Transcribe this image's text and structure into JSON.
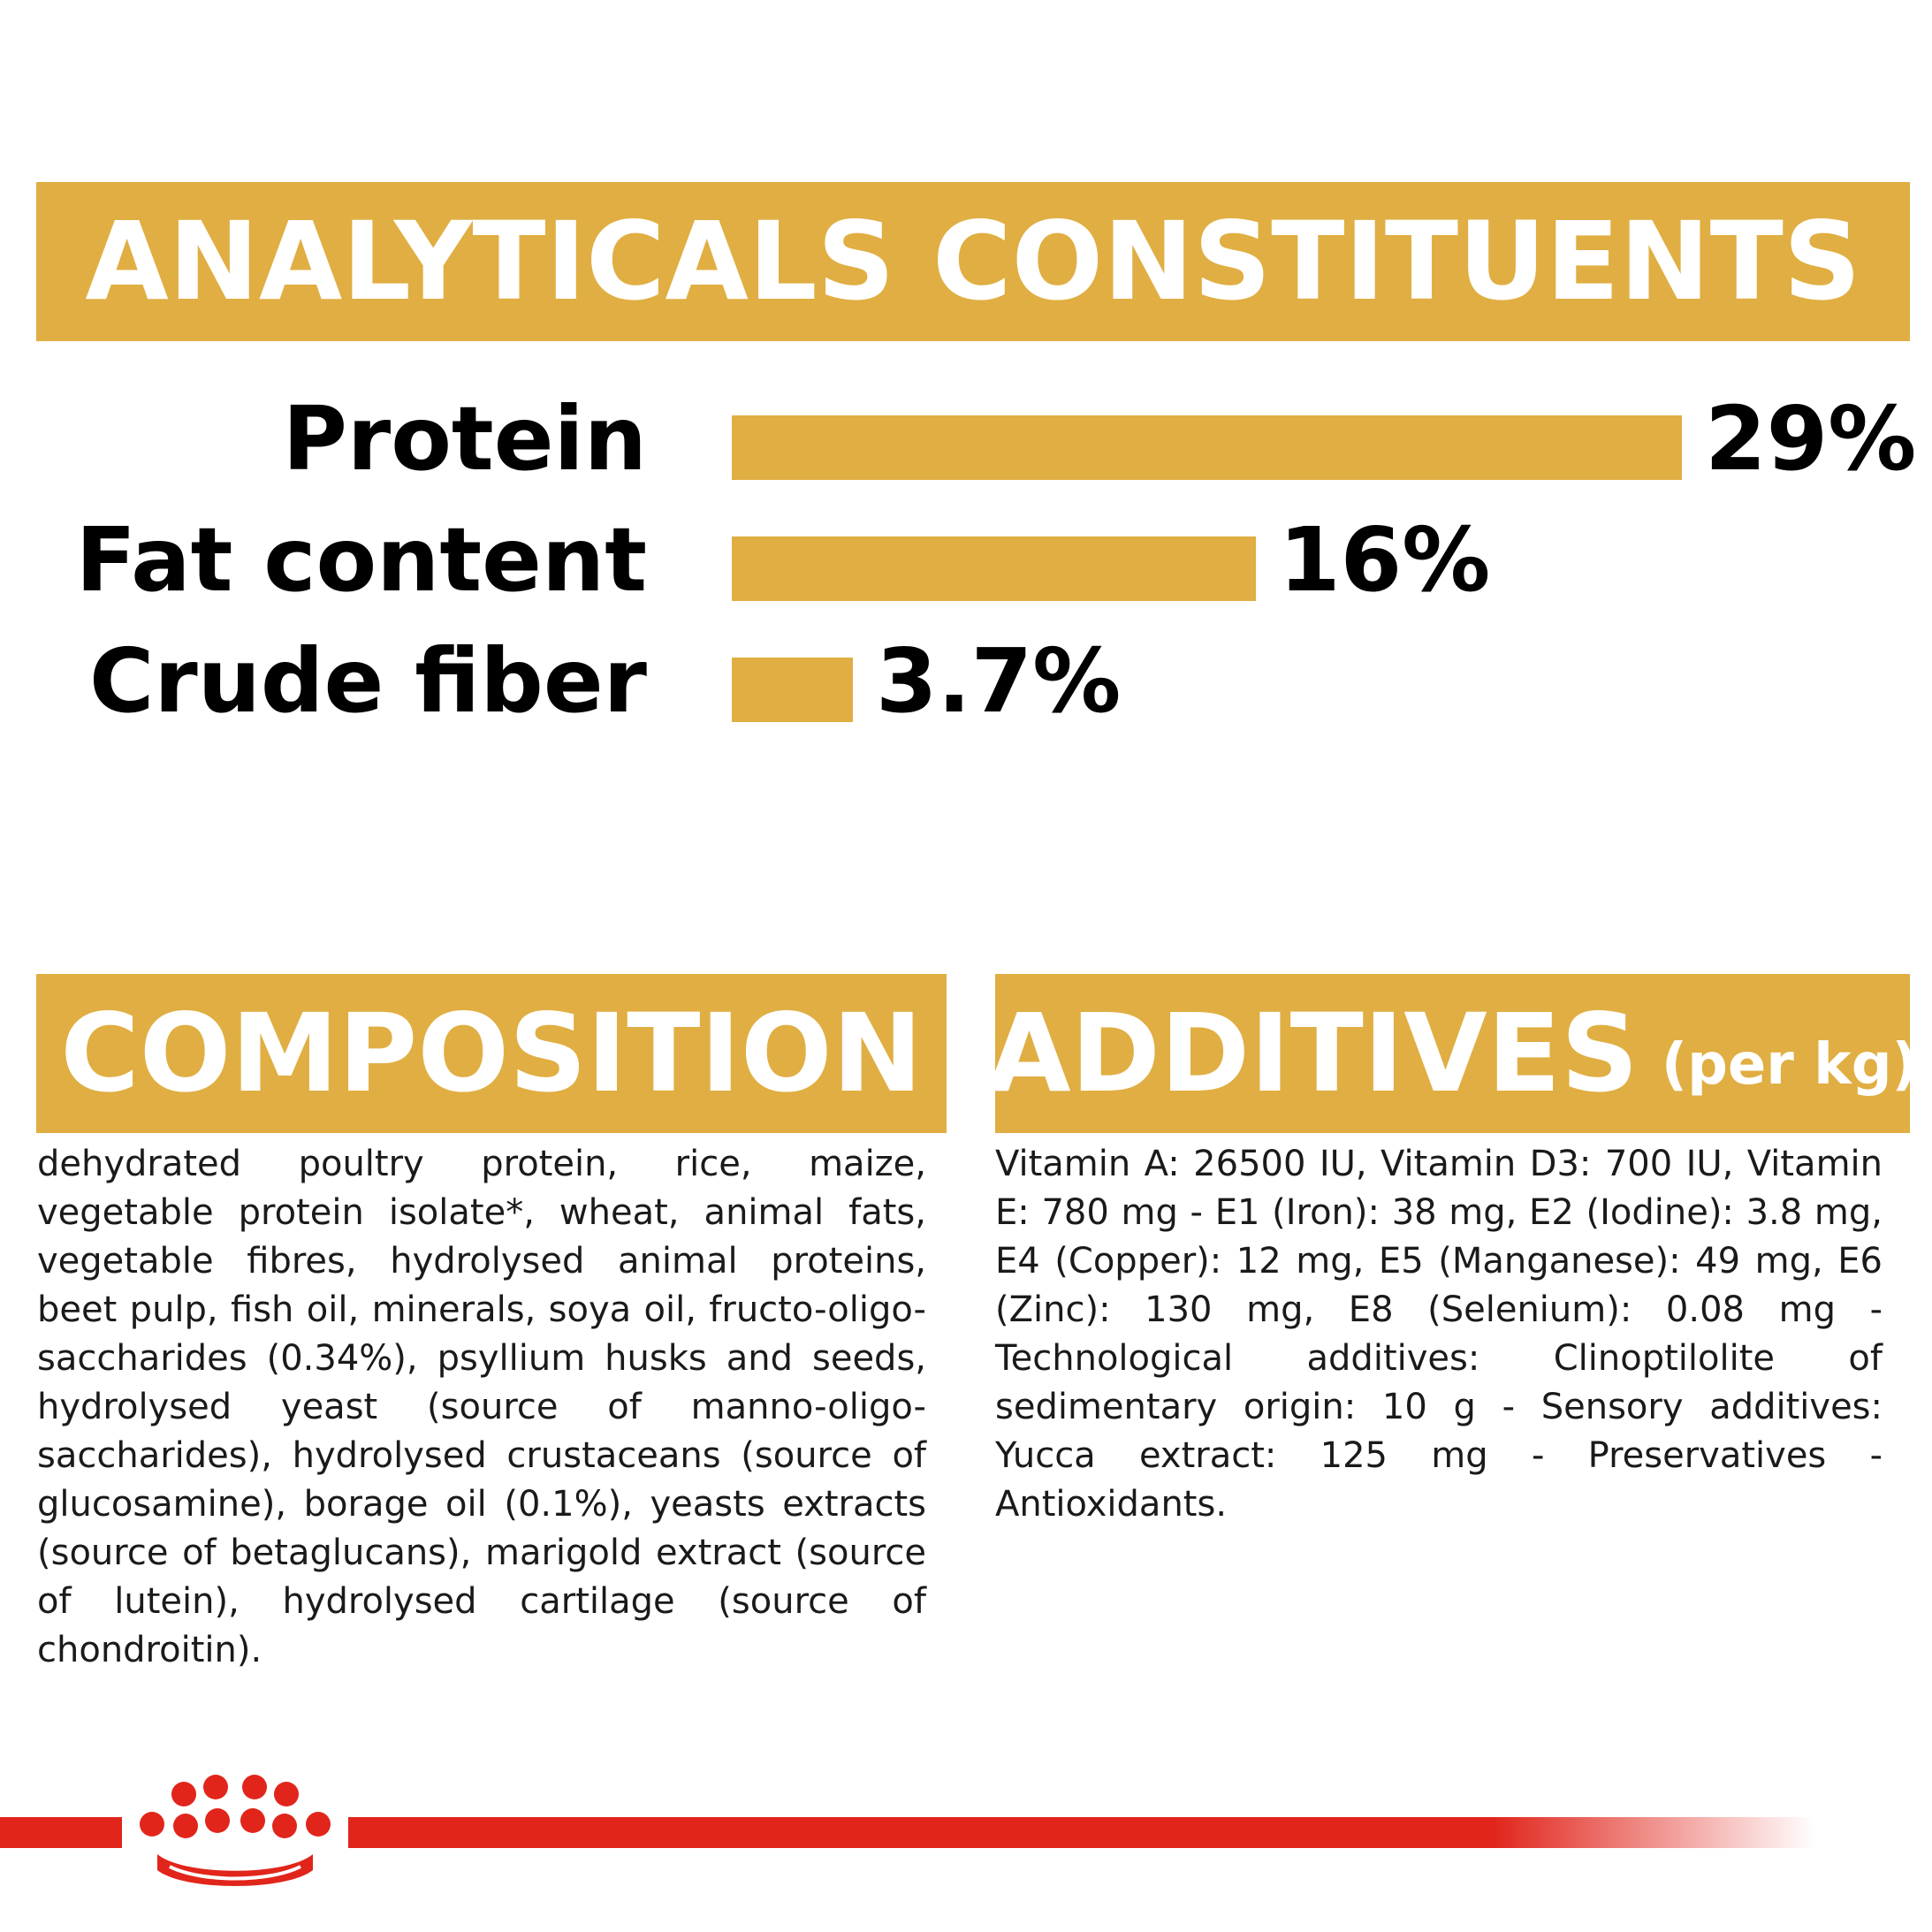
{
  "analytical": {
    "title": "ANALYTICALS CONSTITUENTS",
    "rows": [
      {
        "label": "Protein",
        "value_text": "29%",
        "value": 29
      },
      {
        "label": "Fat content",
        "value_text": "16%",
        "value": 16
      },
      {
        "label": "Crude fiber",
        "value_text": "3.7%",
        "value": 3.7
      }
    ]
  },
  "composition": {
    "title": "COMPOSITION",
    "text": "dehydrated poultry protein, rice, maize, vegetable protein isolate*, wheat, animal fats, vegetable fibres, hydrolysed animal proteins, beet pulp, fish oil, minerals, soya oil, fructo-oligo-saccharides (0.34%), psyllium husks and seeds, hydrolysed yeast (source of manno-oligo-saccharides), hydrolysed crustaceans (source of glucosamine), borage oil (0.1%), yeasts extracts (source of betaglucans), marigold extract (source of lutein), hydrolysed cartilage (source of chondroitin)."
  },
  "additives": {
    "title": "ADDITIVES",
    "unit": "(per kg)",
    "text": "Vitamin A: 26500 IU, Vitamin D3: 700 IU, Vitamin E: 780 mg - E1 (Iron): 38 mg, E2 (Iodine): 3.8 mg, E4 (Copper): 12 mg, E5 (Manganese): 49 mg, E6 (Zinc): 130 mg, E8 (Selenium): 0.08 mg - Technological additives: Clinoptilolite of sedimentary origin: 10 g - Sensory additives: Yucca extract: 125 mg - Preservatives - Antioxidants."
  },
  "colors": {
    "accent_gold": "#e0ae42",
    "brand_red": "#e1251b",
    "text": "#000000"
  },
  "footer": {
    "logo_icon": "crown-icon"
  }
}
